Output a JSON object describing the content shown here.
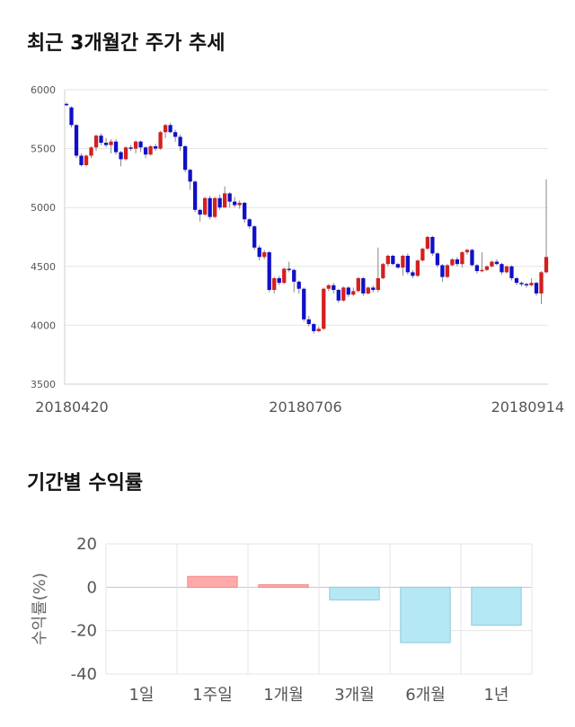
{
  "sections": {
    "price_title": "최근 3개월간 주가 추세",
    "return_title": "기간별 수익률"
  },
  "chart_data": [
    {
      "type": "candlestick",
      "title": "최근 3개월간 주가 추세",
      "ylim": [
        3500,
        6000
      ],
      "yticks": [
        6000,
        5500,
        5000,
        4500,
        4000,
        3500
      ],
      "xtick_labels": [
        "20180420",
        "20180706",
        "20180914"
      ],
      "grid": true,
      "colors": {
        "up": "#d32020",
        "down": "#1010c8",
        "wick": "#888888"
      },
      "candles": [
        [
          5880,
          5870,
          5890,
          5860
        ],
        [
          5850,
          5700,
          5860,
          5680
        ],
        [
          5700,
          5440,
          5710,
          5420
        ],
        [
          5440,
          5360,
          5460,
          5350
        ],
        [
          5360,
          5440,
          5450,
          5350
        ],
        [
          5440,
          5510,
          5520,
          5420
        ],
        [
          5510,
          5610,
          5620,
          5480
        ],
        [
          5610,
          5550,
          5630,
          5530
        ],
        [
          5550,
          5530,
          5590,
          5510
        ],
        [
          5530,
          5560,
          5580,
          5460
        ],
        [
          5560,
          5470,
          5580,
          5450
        ],
        [
          5470,
          5410,
          5480,
          5350
        ],
        [
          5410,
          5510,
          5520,
          5400
        ],
        [
          5510,
          5500,
          5530,
          5480
        ],
        [
          5500,
          5560,
          5570,
          5460
        ],
        [
          5560,
          5510,
          5570,
          5470
        ],
        [
          5510,
          5450,
          5520,
          5420
        ],
        [
          5450,
          5520,
          5530,
          5440
        ],
        [
          5520,
          5500,
          5540,
          5480
        ],
        [
          5500,
          5640,
          5650,
          5490
        ],
        [
          5640,
          5700,
          5710,
          5590
        ],
        [
          5700,
          5640,
          5720,
          5630
        ],
        [
          5640,
          5600,
          5660,
          5560
        ],
        [
          5600,
          5520,
          5620,
          5480
        ],
        [
          5520,
          5320,
          5530,
          5300
        ],
        [
          5320,
          5220,
          5330,
          5150
        ],
        [
          5220,
          4980,
          5230,
          4960
        ],
        [
          4980,
          4940,
          4990,
          4880
        ],
        [
          4940,
          5080,
          5090,
          4930
        ],
        [
          5080,
          4920,
          5100,
          4900
        ],
        [
          4920,
          5080,
          5090,
          4910
        ],
        [
          5080,
          5000,
          5110,
          4980
        ],
        [
          5000,
          5120,
          5180,
          5000
        ],
        [
          5120,
          5050,
          5130,
          5000
        ],
        [
          5050,
          5020,
          5090,
          5000
        ],
        [
          5020,
          5040,
          5060,
          4990
        ],
        [
          5040,
          4900,
          5050,
          4870
        ],
        [
          4900,
          4840,
          4910,
          4820
        ],
        [
          4840,
          4660,
          4850,
          4640
        ],
        [
          4660,
          4580,
          4680,
          4550
        ],
        [
          4580,
          4620,
          4640,
          4560
        ],
        [
          4620,
          4300,
          4630,
          4280
        ],
        [
          4300,
          4400,
          4410,
          4270
        ],
        [
          4400,
          4360,
          4420,
          4340
        ],
        [
          4360,
          4480,
          4490,
          4350
        ],
        [
          4480,
          4470,
          4540,
          4450
        ],
        [
          4470,
          4370,
          4480,
          4280
        ],
        [
          4370,
          4310,
          4380,
          4270
        ],
        [
          4310,
          4050,
          4320,
          4030
        ],
        [
          4050,
          4010,
          4080,
          3990
        ],
        [
          4010,
          3950,
          4020,
          3930
        ],
        [
          3950,
          3970,
          3990,
          3940
        ],
        [
          3970,
          4310,
          4320,
          3960
        ],
        [
          4310,
          4340,
          4350,
          4290
        ],
        [
          4340,
          4300,
          4360,
          4270
        ],
        [
          4300,
          4210,
          4310,
          4190
        ],
        [
          4210,
          4320,
          4330,
          4200
        ],
        [
          4320,
          4260,
          4330,
          4240
        ],
        [
          4260,
          4290,
          4320,
          4250
        ],
        [
          4290,
          4400,
          4410,
          4280
        ],
        [
          4400,
          4270,
          4410,
          4250
        ],
        [
          4270,
          4320,
          4330,
          4260
        ],
        [
          4320,
          4300,
          4340,
          4280
        ],
        [
          4300,
          4400,
          4660,
          4280
        ],
        [
          4400,
          4520,
          4530,
          4390
        ],
        [
          4520,
          4590,
          4600,
          4500
        ],
        [
          4590,
          4520,
          4600,
          4510
        ],
        [
          4520,
          4490,
          4530,
          4480
        ],
        [
          4490,
          4590,
          4600,
          4420
        ],
        [
          4590,
          4450,
          4610,
          4430
        ],
        [
          4450,
          4420,
          4470,
          4400
        ],
        [
          4420,
          4550,
          4560,
          4410
        ],
        [
          4550,
          4650,
          4660,
          4540
        ],
        [
          4650,
          4750,
          4760,
          4640
        ],
        [
          4750,
          4610,
          4760,
          4590
        ],
        [
          4610,
          4510,
          4620,
          4490
        ],
        [
          4510,
          4410,
          4520,
          4370
        ],
        [
          4410,
          4510,
          4520,
          4400
        ],
        [
          4510,
          4560,
          4570,
          4500
        ],
        [
          4560,
          4520,
          4580,
          4500
        ],
        [
          4520,
          4620,
          4630,
          4490
        ],
        [
          4620,
          4640,
          4650,
          4600
        ],
        [
          4640,
          4510,
          4650,
          4500
        ],
        [
          4510,
          4460,
          4520,
          4440
        ],
        [
          4460,
          4470,
          4620,
          4450
        ],
        [
          4470,
          4500,
          4510,
          4460
        ],
        [
          4500,
          4540,
          4550,
          4490
        ],
        [
          4540,
          4520,
          4560,
          4510
        ],
        [
          4520,
          4450,
          4530,
          4430
        ],
        [
          4450,
          4500,
          4510,
          4440
        ],
        [
          4500,
          4400,
          4510,
          4380
        ],
        [
          4400,
          4360,
          4410,
          4340
        ],
        [
          4360,
          4350,
          4370,
          4330
        ],
        [
          4350,
          4340,
          4360,
          4320
        ],
        [
          4340,
          4360,
          4400,
          4330
        ],
        [
          4360,
          4270,
          4370,
          4250
        ],
        [
          4270,
          4450,
          4460,
          4180
        ],
        [
          4450,
          4580,
          5240,
          4440
        ]
      ]
    },
    {
      "type": "bar",
      "title": "기간별 수익률",
      "categories": [
        "1일",
        "1주일",
        "1개월",
        "3개월",
        "6개월",
        "1년"
      ],
      "values": [
        0,
        5.0,
        1.2,
        -5.8,
        -25.5,
        -17.5
      ],
      "ylabel": "수익률(%)",
      "ylim": [
        -40,
        20
      ],
      "yticks": [
        20,
        0,
        -20,
        -40
      ],
      "grid": true,
      "colors": {
        "positive": "#ffaaaa",
        "negative": "#b4e8f4"
      }
    }
  ]
}
